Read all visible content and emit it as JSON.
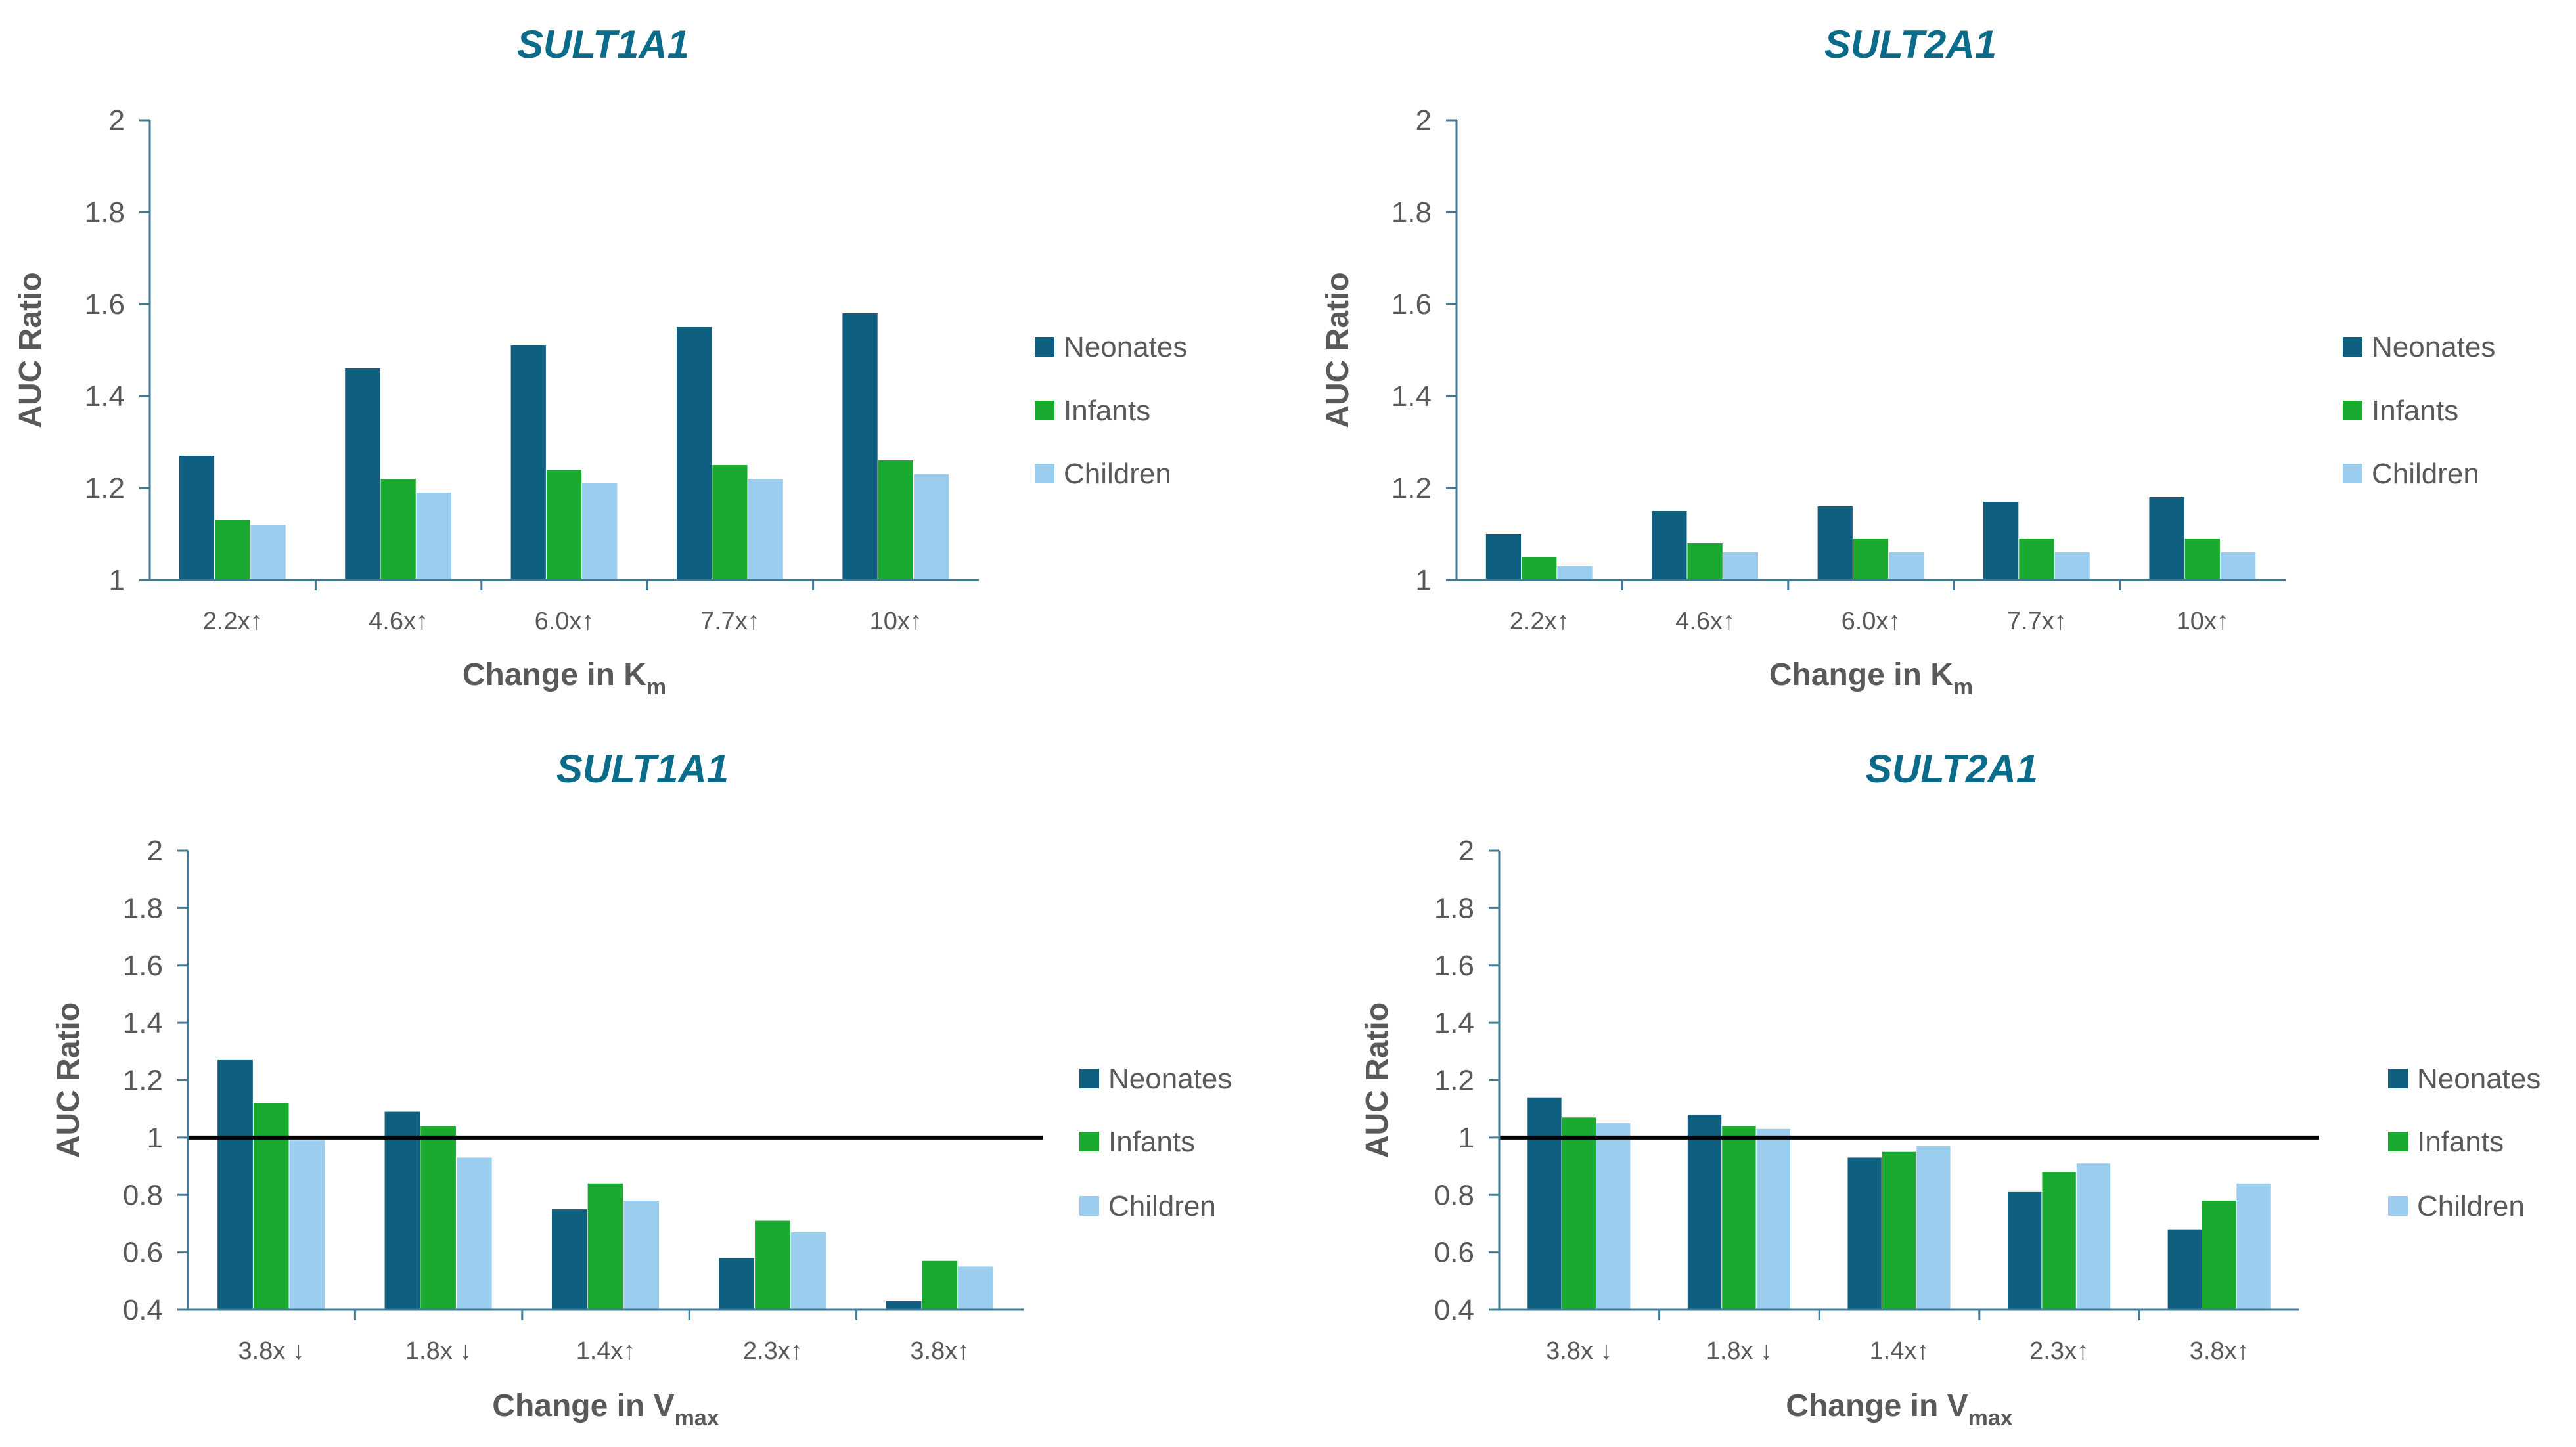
{
  "colors": {
    "Neonates": "#0e5f80",
    "Infants": "#1aaa2f",
    "Children": "#9bcdee",
    "axis": "#3e7a96",
    "text": "#595959",
    "title": "#0b6b8a",
    "reference_line": "#000000"
  },
  "chart_data": [
    {
      "type": "bar",
      "title": "SULT1A1",
      "xlabel": "Change in K",
      "xlabel_sub": "m",
      "ylabel": "AUC Ratio",
      "ylim": [
        1,
        2
      ],
      "yticks": [
        "1",
        "1.2",
        "1.4",
        "1.6",
        "1.8",
        "2"
      ],
      "categories": [
        "2.2x↑",
        "4.6x↑",
        "6.0x↑",
        "7.7x↑",
        "10x↑"
      ],
      "series": [
        {
          "name": "Neonates",
          "values": [
            1.27,
            1.46,
            1.51,
            1.55,
            1.58
          ]
        },
        {
          "name": "Infants",
          "values": [
            1.13,
            1.22,
            1.24,
            1.25,
            1.26
          ]
        },
        {
          "name": "Children",
          "values": [
            1.12,
            1.19,
            1.21,
            1.22,
            1.23
          ]
        }
      ],
      "legend": "right",
      "grid": false
    },
    {
      "type": "bar",
      "title": "SULT2A1",
      "xlabel": "Change in K",
      "xlabel_sub": "m",
      "ylabel": "AUC Ratio",
      "ylim": [
        1,
        2
      ],
      "yticks": [
        "1",
        "1.2",
        "1.4",
        "1.6",
        "1.8",
        "2"
      ],
      "categories": [
        "2.2x↑",
        "4.6x↑",
        "6.0x↑",
        "7.7x↑",
        "10x↑"
      ],
      "series": [
        {
          "name": "Neonates",
          "values": [
            1.1,
            1.15,
            1.16,
            1.17,
            1.18
          ]
        },
        {
          "name": "Infants",
          "values": [
            1.05,
            1.08,
            1.09,
            1.09,
            1.09
          ]
        },
        {
          "name": "Children",
          "values": [
            1.03,
            1.06,
            1.06,
            1.06,
            1.06
          ]
        }
      ],
      "legend": "right",
      "grid": false
    },
    {
      "type": "bar",
      "title": "SULT1A1",
      "xlabel": "Change in V",
      "xlabel_sub": "max",
      "ylabel": "AUC Ratio",
      "ylim": [
        0.4,
        2
      ],
      "yticks": [
        "0.4",
        "0.6",
        "0.8",
        "1",
        "1.2",
        "1.4",
        "1.6",
        "1.8",
        "2"
      ],
      "reference_line": 1,
      "categories": [
        "3.8x ↓",
        "1.8x ↓",
        "1.4x↑",
        "2.3x↑",
        "3.8x↑"
      ],
      "series": [
        {
          "name": "Neonates",
          "values": [
            1.27,
            1.09,
            0.75,
            0.58,
            0.43
          ]
        },
        {
          "name": "Infants",
          "values": [
            1.12,
            1.04,
            0.84,
            0.71,
            0.57
          ]
        },
        {
          "name": "Children",
          "values": [
            0.99,
            0.93,
            0.78,
            0.67,
            0.55
          ]
        }
      ],
      "legend": "right",
      "grid": false
    },
    {
      "type": "bar",
      "title": "SULT2A1",
      "xlabel": "Change in V",
      "xlabel_sub": "max",
      "ylabel": "AUC Ratio",
      "ylim": [
        0.4,
        2
      ],
      "yticks": [
        "0.4",
        "0.6",
        "0.8",
        "1",
        "1.2",
        "1.4",
        "1.6",
        "1.8",
        "2"
      ],
      "reference_line": 1,
      "categories": [
        "3.8x ↓",
        "1.8x ↓",
        "1.4x↑",
        "2.3x↑",
        "3.8x↑"
      ],
      "series": [
        {
          "name": "Neonates",
          "values": [
            1.14,
            1.08,
            0.93,
            0.81,
            0.68
          ]
        },
        {
          "name": "Infants",
          "values": [
            1.07,
            1.04,
            0.95,
            0.88,
            0.78
          ]
        },
        {
          "name": "Children",
          "values": [
            1.05,
            1.03,
            0.97,
            0.91,
            0.84
          ]
        }
      ],
      "legend": "right",
      "grid": false
    }
  ]
}
